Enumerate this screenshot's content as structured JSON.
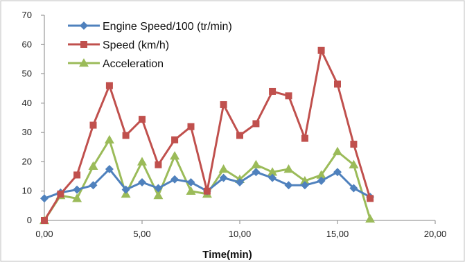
{
  "colors": {
    "engine_speed": "#4F81BD",
    "speed": "#C0504D",
    "acceleration": "#9BBB59",
    "axis": "#868686",
    "frame": "#bfbfbf"
  },
  "chart_data": {
    "type": "line",
    "xlabel": "Time(min)",
    "ylabel": "",
    "xlim": [
      0,
      20
    ],
    "ylim": [
      0,
      70
    ],
    "x_ticks": [
      0,
      5,
      10,
      15,
      20
    ],
    "x_tick_labels": [
      "0,00",
      "5,00",
      "10,00",
      "15,00",
      "20,00"
    ],
    "y_ticks": [
      0,
      10,
      20,
      30,
      40,
      50,
      60,
      70
    ],
    "y_tick_labels": [
      "0",
      "10",
      "20",
      "30",
      "40",
      "50",
      "60",
      "70"
    ],
    "grid": false,
    "legend_position": "top-left",
    "x": [
      0,
      0.83,
      1.67,
      2.5,
      3.33,
      4.17,
      5.0,
      5.83,
      6.67,
      7.5,
      8.33,
      9.17,
      10.0,
      10.83,
      11.67,
      12.5,
      13.33,
      14.17,
      15.0,
      15.83,
      16.67
    ],
    "series": [
      {
        "name": "Engine Speed/100  (tr/min)",
        "color_key": "engine_speed",
        "marker": "diamond",
        "values": [
          7.5,
          9.5,
          10.5,
          12,
          17.5,
          10.5,
          13,
          11,
          14,
          13,
          10,
          14.5,
          13,
          16.5,
          14.5,
          12,
          12,
          13.5,
          16.5,
          11,
          8
        ]
      },
      {
        "name": "Speed (km/h)",
        "color_key": "speed",
        "marker": "square",
        "values": [
          0,
          9,
          15.5,
          32.5,
          46,
          29,
          34.5,
          19,
          27.5,
          32,
          10,
          39.5,
          29,
          33,
          44,
          42.5,
          28,
          58,
          46.5,
          26,
          7.5
        ]
      },
      {
        "name": "Acceleration",
        "color_key": "acceleration",
        "marker": "triangle",
        "values": [
          0,
          8.5,
          7.5,
          18.5,
          27.5,
          9,
          20,
          8.5,
          22,
          10,
          9,
          17.5,
          14,
          19,
          16.5,
          17.5,
          13.5,
          15.5,
          23.5,
          19,
          0.5
        ]
      }
    ]
  }
}
